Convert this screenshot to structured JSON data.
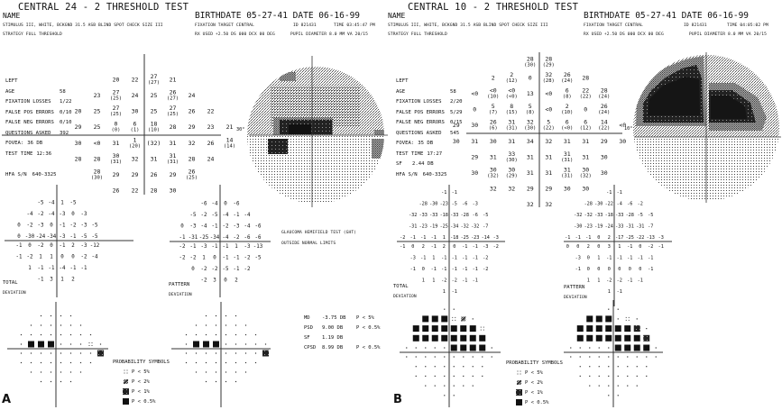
{
  "panels": [
    {
      "letter": "A",
      "title": "CENTRAL 24 - 2 THRESHOLD TEST",
      "name_label": "NAME",
      "stimulus": "STIMULUS  III, WHITE, BCKGND 31.5 ASB  BLIND SPOT CHECK SIZE  III",
      "strategy": "STRATEGY  FULL THRESHOLD",
      "birthdate": "BIRTHDATE  05-27-41 DATE  06-16-99",
      "fixation_target": "FIXATION TARGET   CENTRAL",
      "id": "ID  821431",
      "time": "TIME  03:45:47 PM",
      "rx_used": "RX USED +2.50 DS 000 DCX 00 DEG",
      "pupil": "PUPIL DIAMETER 8.0 MM   VA  20/15",
      "info": [
        {
          "label": "LEFT",
          "value": ""
        },
        {
          "label": "AGE",
          "value": "58"
        },
        {
          "label": "FIXATION LOSSES",
          "value": "1/22"
        },
        {
          "label": "FALSE POS ERRORS",
          "value": "0/10"
        },
        {
          "label": "FALSE NEG ERRORS",
          "value": "0/10"
        },
        {
          "label": "QUESTIONS ASKED",
          "value": "392"
        },
        {
          "label": "FOVEA:",
          "value": "36 DB"
        },
        {
          "label": "TEST TIME",
          "value": "12:36"
        },
        {
          "label": "",
          "value": ""
        },
        {
          "label": "HFA S/N",
          "value": "640-3325"
        }
      ],
      "map_degree_label": "30°",
      "threshold": [
        [
          "20",
          "22",
          "27(27)",
          "21"
        ],
        [
          "23",
          "27(25)",
          "24",
          "25",
          "26(27)",
          "24"
        ],
        [
          "20",
          "25",
          "27(25)",
          "30",
          "25",
          "27(25)",
          "26",
          "22"
        ],
        [
          "29",
          "25",
          "0(0)",
          "6(1)",
          "18(10)",
          "28",
          "29",
          "23",
          "21"
        ],
        [
          "30",
          "<0",
          "31",
          "1(20)",
          "(32)",
          "31",
          "32",
          "26",
          "14(14)"
        ],
        [
          "28",
          "28",
          "30(31)",
          "32",
          "31",
          "31(31)",
          "28",
          "24"
        ],
        [
          "28(30)",
          "29",
          "29",
          "26",
          "29",
          "26(25)"
        ],
        [
          "26",
          "22",
          "28",
          "30"
        ]
      ],
      "total_deviation": [
        [
          "-5",
          "-4",
          "1",
          "-5"
        ],
        [
          "-4",
          "-2",
          "-4",
          "-3",
          "0",
          "-3"
        ],
        [
          "0",
          "-2",
          "-3",
          "0",
          "-1",
          "-2",
          "-3",
          "-5"
        ],
        [
          "0",
          "-30",
          "-24",
          "-34",
          "-3",
          "-1",
          "-5",
          "-5"
        ],
        [
          "-1",
          "0",
          "-2",
          "0",
          "-1",
          "2",
          "-3",
          "-12"
        ],
        [
          "-1",
          "-2",
          "1",
          "1",
          "0",
          "0",
          "-2",
          "-4"
        ],
        [
          "1",
          "-1",
          "-1",
          "-4",
          "-1",
          "-1"
        ],
        [
          "-1",
          "3",
          "1",
          "2"
        ]
      ],
      "pattern_deviation": [
        [
          "-6",
          "-4",
          "0",
          "-6"
        ],
        [
          "-5",
          "-2",
          "-5",
          "-4",
          "-1",
          "-4"
        ],
        [
          "0",
          "-3",
          "-4",
          "-1",
          "-2",
          "-3",
          "-4",
          "-6"
        ],
        [
          "-1",
          "-31",
          "-25",
          "-34",
          "-4",
          "-2",
          "-6",
          "-6"
        ],
        [
          "-2",
          "-1",
          "-3",
          "-1",
          "-1",
          "1",
          "-3",
          "-13"
        ],
        [
          "-2",
          "-2",
          "1",
          "0",
          "-1",
          "-1",
          "-2",
          "-5"
        ],
        [
          "0",
          "-2",
          "-2",
          "-5",
          "-1",
          "-2"
        ],
        [
          "-2",
          "3",
          "0",
          "2"
        ]
      ],
      "total_deviation_label": [
        "TOTAL",
        "DEVIATION"
      ],
      "pattern_deviation_label": [
        "PATTERN",
        "DEVIATION"
      ],
      "total_deviation_probability": [
        "....",
        "......",
        "........",
        ".ddd...a.",
        "........c",
        "........",
        "......",
        "...."
      ],
      "pattern_deviation_probability": [
        "....",
        "......",
        "........",
        ".ddd.....",
        "........c",
        "........",
        "......",
        "...."
      ],
      "legend_title": "PROBABILITY SYMBOLS",
      "legend": [
        {
          "symbol": "a",
          "label": "P <  5%"
        },
        {
          "symbol": "b",
          "label": "P <  2%"
        },
        {
          "symbol": "c",
          "label": "P <  1%"
        },
        {
          "symbol": "d",
          "label": "P < 0.5%"
        }
      ],
      "ght": [
        "GLAUCOMA HEMIFIELD TEST (GHT)",
        "OUTSIDE NORMAL LIMITS"
      ],
      "global_indices": [
        {
          "label": "MD",
          "value": "-3.75 DB",
          "p": "P <  5%"
        },
        {
          "label": "PSD",
          "value": "9.00 DB",
          "p": "P < 0.5%"
        },
        {
          "label": "SF",
          "value": "1.19 DB",
          "p": ""
        },
        {
          "label": "CPSD",
          "value": "8.99 DB",
          "p": "P < 0.5%"
        }
      ]
    },
    {
      "letter": "B",
      "title": "CENTRAL 10 - 2 THRESHOLD TEST",
      "name_label": "NAME",
      "stimulus": "STIMULUS  III, WHITE, BCKGND 31.5 ASB  BLIND SPOT CHECK SIZE  III",
      "strategy": "STRATEGY  FULL THRESHOLD",
      "birthdate": "BIRTHDATE  05-27-41 DATE  06-16-99",
      "fixation_target": "FIXATION TARGET   CENTRAL",
      "id": "ID  821431",
      "time": "TIME  04:05:02 PM",
      "rx_used": "RX USED +2.50 DS 000 DCX 00 DEG",
      "pupil": "PUPIL DIAMETER 8.0 MM   VA  20/15",
      "info": [
        {
          "label": "LEFT",
          "value": ""
        },
        {
          "label": "AGE",
          "value": "58"
        },
        {
          "label": "FIXATION LOSSES",
          "value": "2/20"
        },
        {
          "label": "FALSE POS ERRORS",
          "value": "5/29"
        },
        {
          "label": "FALSE NEG ERRORS",
          "value": "0/15"
        },
        {
          "label": "QUESTIONS ASKED",
          "value": "545"
        },
        {
          "label": "FOVEA:",
          "value": "35 DB"
        },
        {
          "label": "TEST TIME",
          "value": "17:27"
        },
        {
          "label": "SF",
          "value": "2.44 DB"
        },
        {
          "label": "HFA S/N",
          "value": "640-3325"
        }
      ],
      "map_degree_label": "10°",
      "threshold": [
        [
          "28(30)",
          "28(29)"
        ],
        [
          "2",
          "2(12)",
          "0",
          "32(28)",
          "26(24)",
          "28"
        ],
        [
          "<0",
          "<0(10)",
          "<0(<0)",
          "13",
          "<0",
          "6(8)",
          "22(22)",
          "28(24)"
        ],
        [
          "0",
          "5(7)",
          "8(15)",
          "5(8)",
          "<0",
          "2(10)",
          "0",
          "26(24)"
        ],
        [
          "29",
          "30",
          "26(6)",
          "31(31)",
          "32(30)",
          "5(22)",
          "6(<0)",
          "6(12)",
          "14(22)",
          "<0"
        ],
        [
          "30",
          "31",
          "30",
          "31",
          "34",
          "32",
          "31",
          "31",
          "29",
          "30"
        ],
        [
          "29",
          "31",
          "33(30)",
          "31",
          "31",
          "31(31)",
          "31",
          "30"
        ],
        [
          "30",
          "30(32)",
          "30(29)",
          "31",
          "31",
          "31(31)",
          "30(32)",
          "30"
        ],
        [
          "32",
          "32",
          "29",
          "29",
          "30",
          "30"
        ],
        [
          "32",
          "32"
        ]
      ],
      "total_deviation": [
        [
          "-1",
          "-1"
        ],
        [
          "-28",
          "-30",
          "-23",
          "-5",
          "-6",
          "-3"
        ],
        [
          "-32",
          "-33",
          "-33",
          "-18",
          "-33",
          "-28",
          "-6",
          "-5"
        ],
        [
          "-31",
          "-23",
          "-19",
          "-25",
          "-34",
          "-32",
          "-32",
          "-7"
        ],
        [
          "-2",
          "-1",
          "-1",
          "-1",
          "1",
          "-18",
          "-25",
          "-23",
          "-14",
          "-3"
        ],
        [
          "-1",
          "0",
          "2",
          "-1",
          "2",
          "0",
          "-1",
          "-1",
          "-3",
          "-2"
        ],
        [
          "-3",
          "-1",
          "1",
          "-1",
          "-1",
          "-1",
          "-1",
          "-2"
        ],
        [
          "-1",
          "0",
          "-1",
          "-1",
          "-1",
          "-1",
          "-1",
          "-2"
        ],
        [
          "1",
          "1",
          "-2",
          "-2",
          "-1",
          "-1"
        ],
        [
          "1",
          "-1"
        ]
      ],
      "pattern_deviation": [
        [
          "-1",
          "-1"
        ],
        [
          "-28",
          "-30",
          "-22",
          "-4",
          "-6",
          "-2"
        ],
        [
          "-32",
          "-32",
          "-33",
          "-18",
          "-33",
          "-28",
          "-5",
          "-5"
        ],
        [
          "-30",
          "-23",
          "-19",
          "-24",
          "-33",
          "-31",
          "-31",
          "-7"
        ],
        [
          "-1",
          "-1",
          "-1",
          "0",
          "2",
          "-17",
          "-25",
          "-22",
          "-13",
          "-3"
        ],
        [
          "0",
          "0",
          "2",
          "0",
          "3",
          "1",
          "-1",
          "0",
          "-2",
          "-1"
        ],
        [
          "-3",
          "0",
          "1",
          "-1",
          "-1",
          "-1",
          "-1",
          "-1"
        ],
        [
          "-1",
          "0",
          "0",
          "0",
          "0",
          "0",
          "0",
          "-1"
        ],
        [
          "1",
          "1",
          "-2",
          "-2",
          "-1",
          "-1"
        ],
        [
          "1",
          "-1"
        ]
      ],
      "total_deviation_label": [
        "TOTAL",
        "DEVIATION"
      ],
      "pattern_deviation_label": [
        "PATTERN",
        "DEVIATION"
      ],
      "total_deviation_probability": [
        "..",
        "dddab.",
        "ddddddda",
        "dddddddd",
        ".....dddd.",
        "..........",
        "........",
        "........",
        "......",
        ".."
      ],
      "pattern_deviation_probability": [
        "..",
        "ddd.a.",
        "ddddddc.",
        "dddddddc",
        ".....dddd.",
        "..........",
        "........",
        "........",
        "......",
        ".."
      ],
      "legend_title": "PROBABILITY SYMBOLS",
      "legend": [
        {
          "symbol": "a",
          "label": "P <  5%"
        },
        {
          "symbol": "b",
          "label": "P <  2%"
        },
        {
          "symbol": "c",
          "label": "P <  1%"
        },
        {
          "symbol": "d",
          "label": "P < 0.5%"
        }
      ]
    }
  ]
}
